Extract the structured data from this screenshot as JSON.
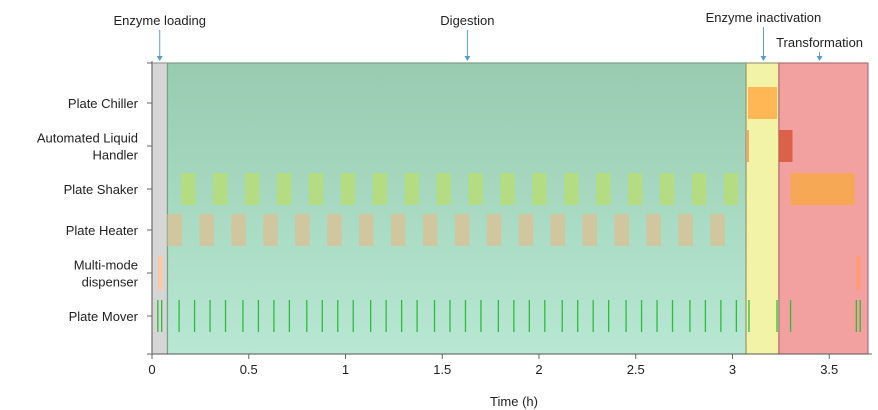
{
  "chart_data": {
    "type": "gantt",
    "title": "",
    "xlabel": "Time (h)",
    "xlim": [
      0,
      3.7
    ],
    "xticks": [
      0,
      0.5,
      1,
      1.5,
      2,
      2.5,
      3,
      3.5
    ],
    "xtick_labels": [
      "0",
      "0.5",
      "1",
      "1.5",
      "2",
      "2.5",
      "3",
      "3.5"
    ],
    "rows": [
      {
        "label": "Plate Chiller",
        "lines": [
          "Plate Chiller"
        ]
      },
      {
        "label": "Automated Liquid Handler",
        "lines": [
          "Automated Liquid",
          "Handler"
        ]
      },
      {
        "label": "Plate Shaker",
        "lines": [
          "Plate Shaker"
        ]
      },
      {
        "label": "Plate Heater",
        "lines": [
          "Plate Heater"
        ]
      },
      {
        "label": "Multi-mode dispenser",
        "lines": [
          "Multi-mode",
          "dispenser"
        ]
      },
      {
        "label": "Plate Mover",
        "lines": [
          "Plate Mover"
        ]
      }
    ],
    "phases": [
      {
        "name": "Enzyme loading",
        "start": 0.0,
        "end": 0.08,
        "marker": 0.04,
        "color": "#d6d6d6",
        "border": "#9a9a9a"
      },
      {
        "name": "Digestion",
        "start": 0.08,
        "end": 3.07,
        "marker": 1.63,
        "color": "#9fd4b4",
        "border": "#7a9e88"
      },
      {
        "name": "Enzyme inactivation",
        "start": 3.07,
        "end": 3.24,
        "marker": 3.16,
        "color": "#f3f3a8",
        "border": "#9a9a70"
      },
      {
        "name": "Transformation",
        "start": 3.24,
        "end": 3.7,
        "marker": 3.45,
        "color": "#f2a0a0",
        "border": "#b07070"
      }
    ],
    "tasks": {
      "Plate Chiller": [
        {
          "start": 3.08,
          "end": 3.23,
          "color": "#ffb04a"
        }
      ],
      "Automated Liquid Handler": [
        {
          "start": 3.07,
          "end": 3.085,
          "color": "#e8a070"
        },
        {
          "start": 3.24,
          "end": 3.31,
          "color": "#d85a40"
        }
      ],
      "Plate Shaker": {
        "periodic": {
          "first_start": 0.15,
          "duration": 0.075,
          "period": 0.165,
          "count": 18,
          "color": "#b6dd7c"
        },
        "extra": [
          {
            "start": 3.3,
            "end": 3.63,
            "color": "#f7a84c"
          }
        ]
      },
      "Plate Heater": {
        "periodic": {
          "first_start": 0.08,
          "duration": 0.075,
          "period": 0.165,
          "count": 18,
          "color": "#d4c49a"
        },
        "extra": []
      },
      "Multi-mode dispenser": [
        {
          "start": 0.03,
          "end": 0.055,
          "color": "#ffc8a0"
        },
        {
          "start": 3.64,
          "end": 3.66,
          "color": "#ff9a70"
        }
      ],
      "Plate Mover": {
        "tick_times": [
          0.03,
          0.05,
          0.14,
          0.22,
          0.3,
          0.38,
          0.47,
          0.55,
          0.63,
          0.71,
          0.8,
          0.88,
          0.96,
          1.04,
          1.13,
          1.21,
          1.29,
          1.37,
          1.46,
          1.54,
          1.62,
          1.7,
          1.79,
          1.87,
          1.95,
          2.03,
          2.12,
          2.2,
          2.28,
          2.36,
          2.45,
          2.53,
          2.61,
          2.69,
          2.78,
          2.86,
          2.94,
          3.02,
          3.085,
          3.23,
          3.3,
          3.64,
          3.66
        ],
        "color": "#2dbd3a"
      }
    }
  }
}
